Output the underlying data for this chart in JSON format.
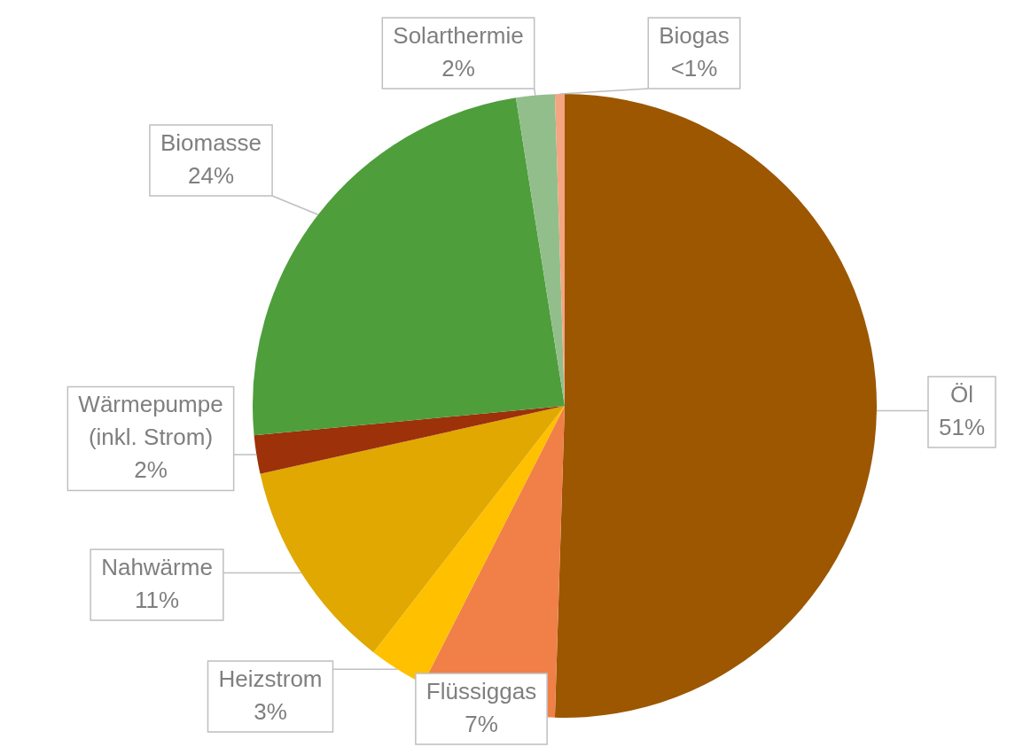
{
  "chart_data": {
    "type": "pie",
    "categories": [
      "Öl",
      "Flüssiggas",
      "Heizstrom",
      "Nahwärme",
      "Wärmepumpe (inkl. Strom)",
      "Biomasse",
      "Solarthermie",
      "Biogas"
    ],
    "values": [
      50.5,
      7,
      3,
      11,
      2,
      24,
      2,
      0.5
    ],
    "colors": [
      "#9c5700",
      "#f08048",
      "#ffc000",
      "#e0a800",
      "#9c310a",
      "#4e9e3c",
      "#92be8c",
      "#f4a582"
    ],
    "value_labels": [
      "51%",
      "7%",
      "3%",
      "11%",
      "2%",
      "24%",
      "2%",
      "<1%"
    ],
    "legend": false
  }
}
